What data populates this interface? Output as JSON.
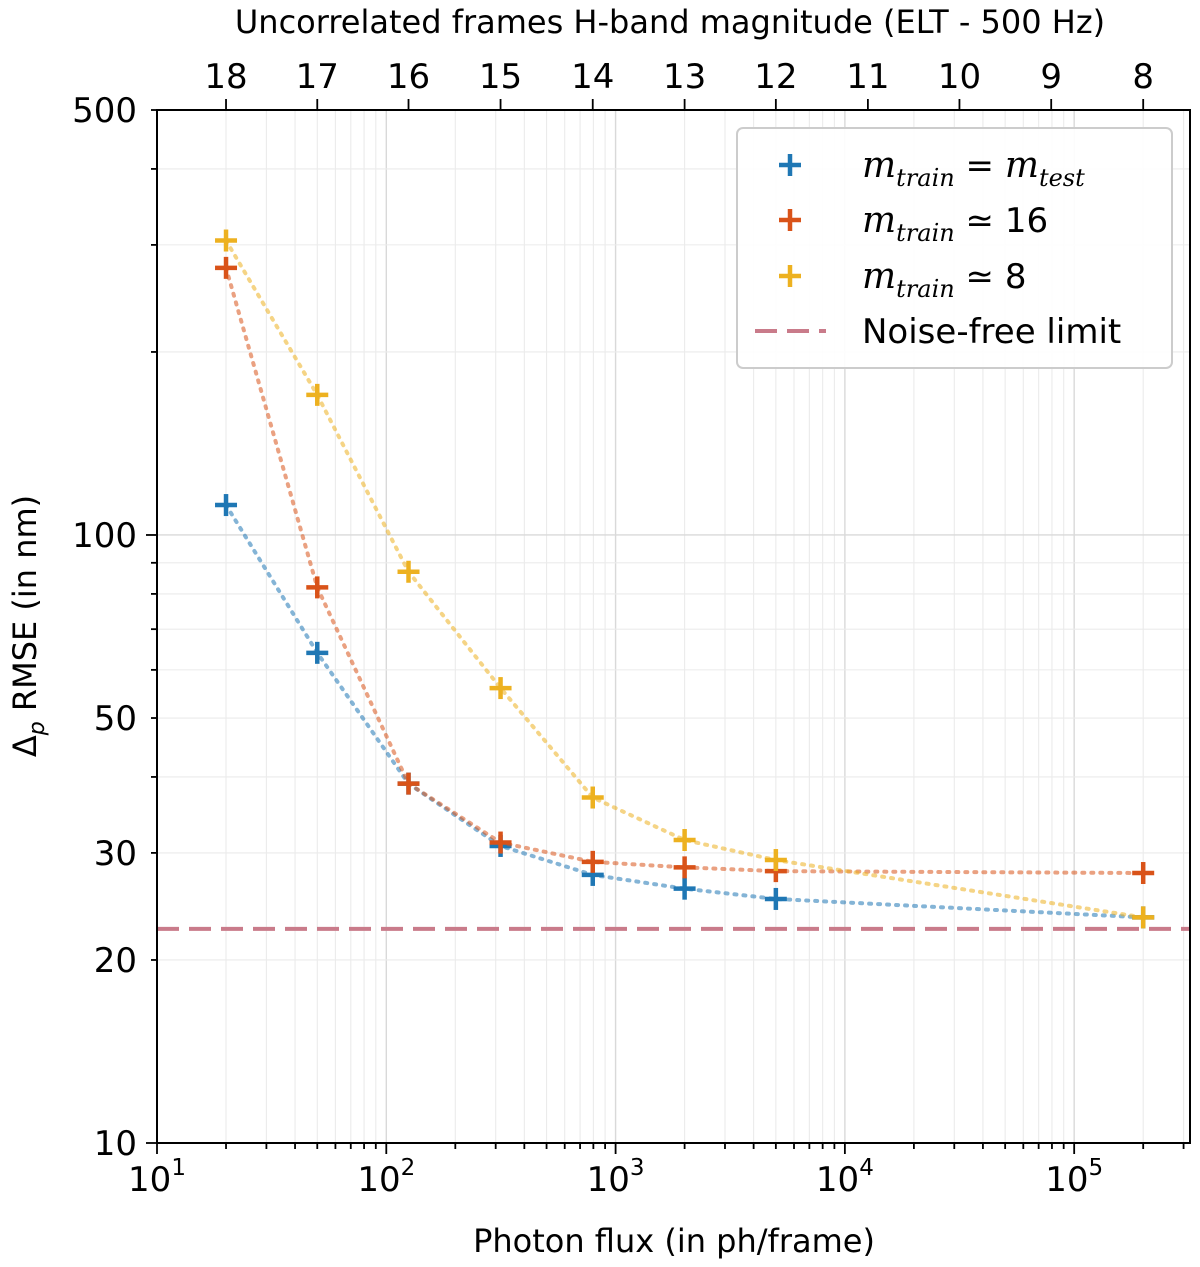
{
  "chart_data": {
    "type": "scatter",
    "title": "",
    "xlabel": "Photon flux (in ph/frame)",
    "ylabel": "Δp RMSE (in nm)",
    "ylabel_main": "Δ",
    "ylabel_sub": "p",
    "ylabel_rest": " RMSE (in nm)",
    "xscale": "log",
    "yscale": "log",
    "xlim": [
      10,
      320000
    ],
    "ylim": [
      10,
      500
    ],
    "grid": true,
    "legend_position": "top-right",
    "x_ticks": [
      {
        "value": 10,
        "base": "10",
        "exp": "1"
      },
      {
        "value": 100,
        "base": "10",
        "exp": "2"
      },
      {
        "value": 1000,
        "base": "10",
        "exp": "3"
      },
      {
        "value": 10000,
        "base": "10",
        "exp": "4"
      },
      {
        "value": 100000,
        "base": "10",
        "exp": "5"
      }
    ],
    "y_ticks": [
      {
        "value": 10,
        "label": "10"
      },
      {
        "value": 20,
        "label": "20"
      },
      {
        "value": 30,
        "label": "30"
      },
      {
        "value": 50,
        "label": "50"
      },
      {
        "value": 100,
        "label": "100"
      },
      {
        "value": 500,
        "label": "500"
      }
    ],
    "top_axis": {
      "label": "Uncorrelated frames H-band magnitude (ELT - 500 Hz)",
      "ticks": [
        {
          "value": 20,
          "label": "18"
        },
        {
          "value": 50,
          "label": "17"
        },
        {
          "value": 125,
          "label": "16"
        },
        {
          "value": 315,
          "label": "15"
        },
        {
          "value": 795,
          "label": "14"
        },
        {
          "value": 2000,
          "label": "13"
        },
        {
          "value": 5000,
          "label": "12"
        },
        {
          "value": 12600,
          "label": "11"
        },
        {
          "value": 31600,
          "label": "10"
        },
        {
          "value": 79400,
          "label": "9"
        },
        {
          "value": 200000,
          "label": "8"
        }
      ]
    },
    "series": [
      {
        "name": "m_train = m_test",
        "color": "#1f77b4",
        "marker": "plus",
        "line": "dotted",
        "x": [
          20,
          50,
          125,
          315,
          795,
          2000,
          5000,
          200000
        ],
        "y": [
          112,
          64,
          39,
          30.8,
          27.6,
          26.2,
          25.2,
          23.5
        ]
      },
      {
        "name": "m_train ≃ 16",
        "color": "#d95319",
        "marker": "plus",
        "line": "dotted",
        "x": [
          20,
          50,
          125,
          315,
          795,
          2000,
          5000,
          200000
        ],
        "y": [
          275,
          82,
          39,
          31.2,
          29.0,
          28.4,
          28.0,
          27.8
        ]
      },
      {
        "name": "m_train ≃ 8",
        "color": "#edb120",
        "marker": "plus",
        "line": "dotted",
        "x": [
          20,
          50,
          125,
          315,
          795,
          2000,
          5000,
          200000
        ],
        "y": [
          305,
          170,
          87,
          56,
          37,
          31.5,
          29.2,
          23.5
        ]
      }
    ],
    "reference_lines": [
      {
        "name": "Noise-free limit",
        "y": 22.5,
        "color": "#c97b8a",
        "style": "dashed"
      }
    ],
    "legend": [
      {
        "key": "blue",
        "color": "#1f77b4",
        "kind": "marker",
        "math_main": "m",
        "math_sub": "train",
        "rel": " = ",
        "rhs_main": "m",
        "rhs_sub": "test",
        "plain": ""
      },
      {
        "key": "red",
        "color": "#d95319",
        "kind": "marker",
        "math_main": "m",
        "math_sub": "train",
        "rel": " ≃ ",
        "rhs_main": "",
        "rhs_sub": "",
        "plain": "16"
      },
      {
        "key": "yellow",
        "color": "#edb120",
        "kind": "marker",
        "math_main": "m",
        "math_sub": "train",
        "rel": " ≃ ",
        "rhs_main": "",
        "rhs_sub": "",
        "plain": "8"
      },
      {
        "key": "limit",
        "color": "#c97b8a",
        "kind": "dash",
        "math_main": "",
        "math_sub": "",
        "rel": "",
        "rhs_main": "",
        "rhs_sub": "",
        "plain": "Noise-free limit"
      }
    ]
  }
}
